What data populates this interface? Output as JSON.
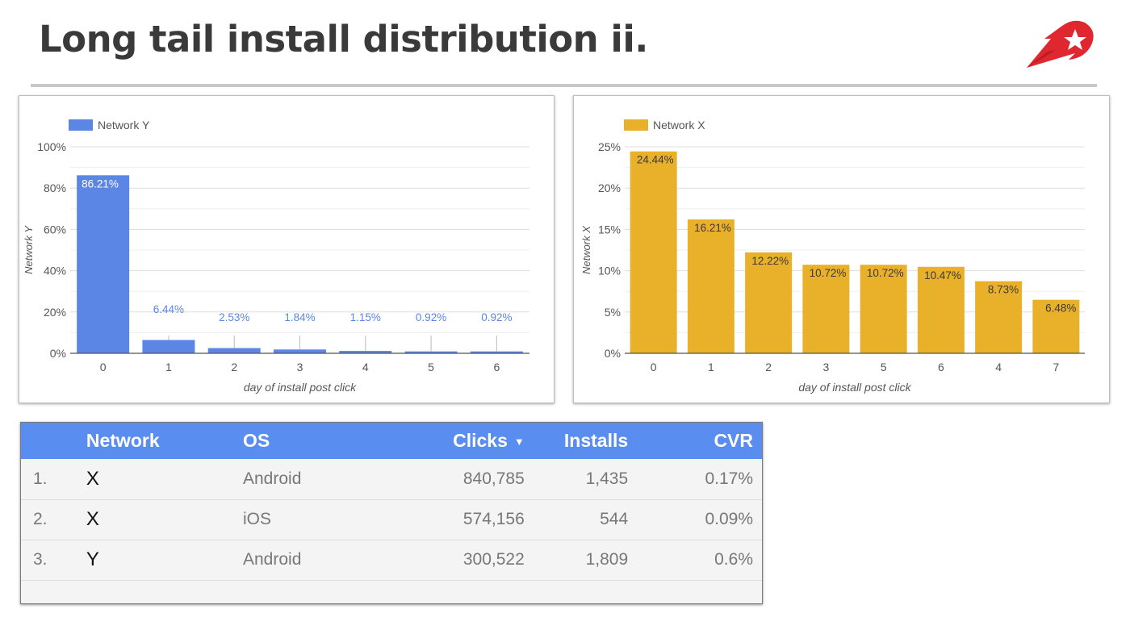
{
  "page": {
    "title": "Long tail install distribution ii.",
    "accent_red": "#e0262e"
  },
  "chart_data": [
    {
      "type": "bar",
      "legend": "Network Y",
      "ylabel": "Network Y",
      "xlabel": "day of install post click",
      "categories": [
        "0",
        "1",
        "2",
        "3",
        "4",
        "5",
        "6"
      ],
      "values": [
        86.21,
        6.44,
        2.53,
        1.84,
        1.15,
        0.92,
        0.92
      ],
      "labels": [
        "86.21%",
        "6.44%",
        "2.53%",
        "1.84%",
        "1.15%",
        "0.92%",
        "0.92%"
      ],
      "ylim": [
        0,
        100
      ],
      "yticks": [
        0,
        20,
        40,
        60,
        80,
        100
      ],
      "ytick_labels": [
        "0%",
        "20%",
        "40%",
        "60%",
        "80%",
        "100%"
      ],
      "color": "#5b86e5",
      "grid": true
    },
    {
      "type": "bar",
      "legend": "Network X",
      "ylabel": "Network X",
      "xlabel": "day of install post click",
      "categories": [
        "0",
        "1",
        "2",
        "3",
        "5",
        "6",
        "4",
        "7"
      ],
      "values": [
        24.44,
        16.21,
        12.22,
        10.72,
        10.72,
        10.47,
        8.73,
        6.48
      ],
      "labels": [
        "24.44%",
        "16.21%",
        "12.22%",
        "10.72%",
        "10.72%",
        "10.47%",
        "8.73%",
        "6.48%"
      ],
      "ylim": [
        0,
        25
      ],
      "yticks": [
        0,
        5,
        10,
        15,
        20,
        25
      ],
      "ytick_labels": [
        "0%",
        "5%",
        "10%",
        "15%",
        "20%",
        "25%"
      ],
      "color": "#e9b12a",
      "grid": true
    }
  ],
  "table": {
    "headers": {
      "network": "Network",
      "os": "OS",
      "clicks": "Clicks",
      "installs": "Installs",
      "cvr": "CVR",
      "sort_icon": "▼"
    },
    "rows": [
      {
        "num": "1.",
        "network": "X",
        "os": "Android",
        "clicks": "840,785",
        "installs": "1,435",
        "cvr": "0.17%"
      },
      {
        "num": "2.",
        "network": "X",
        "os": "iOS",
        "clicks": "574,156",
        "installs": "544",
        "cvr": "0.09%"
      },
      {
        "num": "3.",
        "network": "Y",
        "os": "Android",
        "clicks": "300,522",
        "installs": "1,809",
        "cvr": "0.6%"
      }
    ]
  }
}
